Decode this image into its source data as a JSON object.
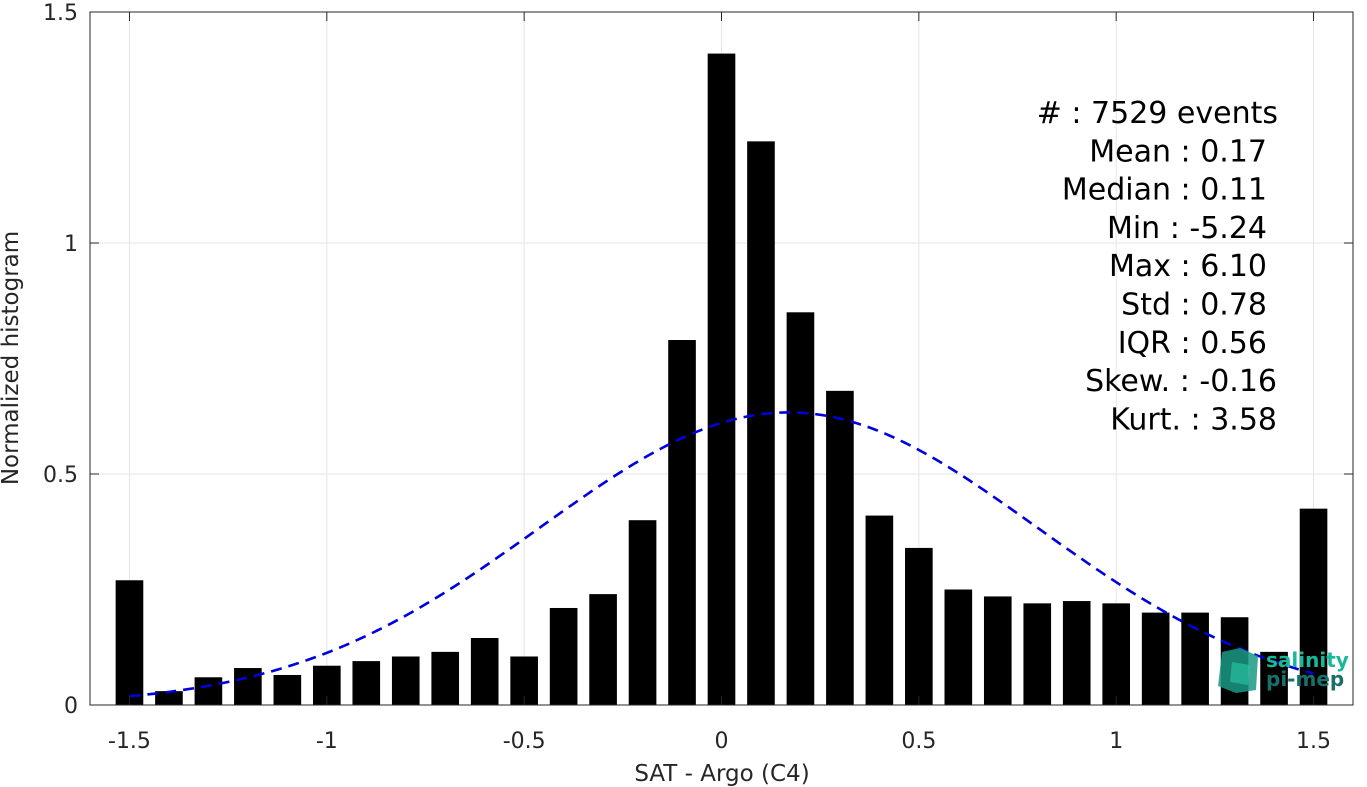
{
  "chart_data": {
    "type": "bar",
    "xlabel": "SAT - Argo (C4)",
    "ylabel": "Normalized histogram",
    "xlim": [
      -1.6,
      1.6
    ],
    "ylim": [
      0,
      1.5
    ],
    "xticks": [
      -1.5,
      -1,
      -0.5,
      0,
      0.5,
      1,
      1.5
    ],
    "xtick_labels": [
      "-1.5",
      "-1",
      "-0.5",
      "0",
      "0.5",
      "1",
      "1.5"
    ],
    "yticks": [
      0,
      0.5,
      1,
      1.5
    ],
    "ytick_labels": [
      "0",
      "0.5",
      "1",
      "1.5"
    ],
    "grid": true,
    "bar_color": "#000000",
    "x": [
      -1.5,
      -1.4,
      -1.3,
      -1.2,
      -1.1,
      -1.0,
      -0.9,
      -0.8,
      -0.7,
      -0.6,
      -0.5,
      -0.4,
      -0.3,
      -0.2,
      -0.1,
      0.0,
      0.1,
      0.2,
      0.3,
      0.4,
      0.5,
      0.6,
      0.7,
      0.8,
      0.9,
      1.0,
      1.1,
      1.2,
      1.3,
      1.4,
      1.5
    ],
    "values": [
      0.27,
      0.03,
      0.06,
      0.08,
      0.065,
      0.085,
      0.095,
      0.105,
      0.115,
      0.145,
      0.105,
      0.21,
      0.24,
      0.4,
      0.79,
      1.41,
      1.22,
      0.85,
      0.68,
      0.41,
      0.34,
      0.25,
      0.235,
      0.22,
      0.225,
      0.22,
      0.2,
      0.2,
      0.19,
      0.115,
      0.425
    ],
    "fit_curve": {
      "type": "normal",
      "mean": 0.17,
      "std": 0.63,
      "x_range": [
        -1.5,
        1.5
      ],
      "color": "#0000dd",
      "style": "dashed"
    },
    "annotations": [
      {
        "name": "#",
        "sep": " : ",
        "value": "7529 events"
      },
      {
        "name": "Mean",
        "sep": " : ",
        "value": "0.17"
      },
      {
        "name": "Median",
        "sep": " : ",
        "value": "0.11"
      },
      {
        "name": "Min",
        "sep": " : ",
        "value": "-5.24"
      },
      {
        "name": "Max",
        "sep": " : ",
        "value": "6.10"
      },
      {
        "name": "Std",
        "sep": " : ",
        "value": "0.78"
      },
      {
        "name": "IQR",
        "sep": " : ",
        "value": "0.56"
      },
      {
        "name": "Skew.",
        "sep": " : ",
        "value": "-0.16"
      },
      {
        "name": "Kurt.",
        "sep": " : ",
        "value": "3.58"
      }
    ]
  },
  "logo": {
    "line1": "salinity",
    "line2": "pi-mep",
    "color1": "#1ab89a",
    "color2": "#1a6f6a"
  }
}
